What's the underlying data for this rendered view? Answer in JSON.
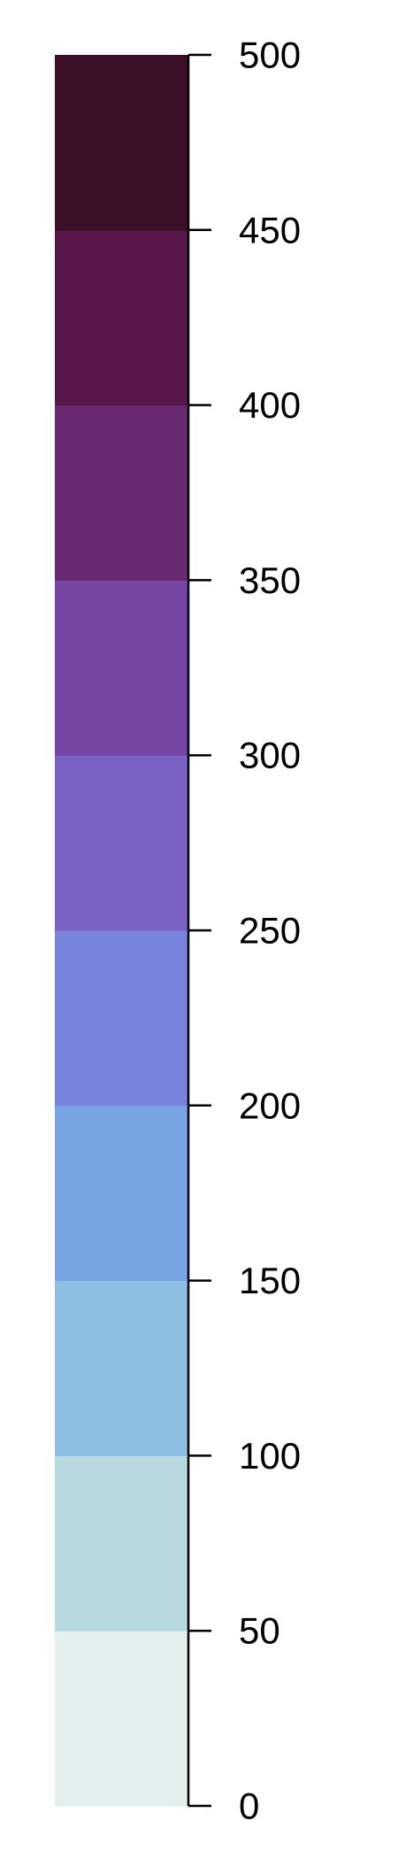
{
  "chart_data": {
    "type": "heatmap",
    "component": "colorbar",
    "title": "",
    "xlabel": "",
    "ylabel": "",
    "ylim": [
      0,
      500
    ],
    "breaks": [
      0,
      50,
      100,
      150,
      200,
      250,
      300,
      350,
      400,
      450,
      500
    ],
    "tick_labels": [
      "0",
      "50",
      "100",
      "150",
      "200",
      "250",
      "300",
      "350",
      "400",
      "450",
      "500"
    ],
    "bins": [
      {
        "from": 0,
        "to": 50,
        "color": "#e3f0ee"
      },
      {
        "from": 50,
        "to": 100,
        "color": "#b8d9e0"
      },
      {
        "from": 100,
        "to": 150,
        "color": "#8ebfe0"
      },
      {
        "from": 150,
        "to": 200,
        "color": "#78a4e4"
      },
      {
        "from": 200,
        "to": 250,
        "color": "#7884dc"
      },
      {
        "from": 250,
        "to": 300,
        "color": "#7b63c6"
      },
      {
        "from": 300,
        "to": 350,
        "color": "#7645a3"
      },
      {
        "from": 350,
        "to": 400,
        "color": "#6a2a72"
      },
      {
        "from": 400,
        "to": 450,
        "color": "#57174b"
      },
      {
        "from": 450,
        "to": 500,
        "color": "#3a0f27"
      }
    ],
    "grid": false,
    "legend": "none"
  }
}
